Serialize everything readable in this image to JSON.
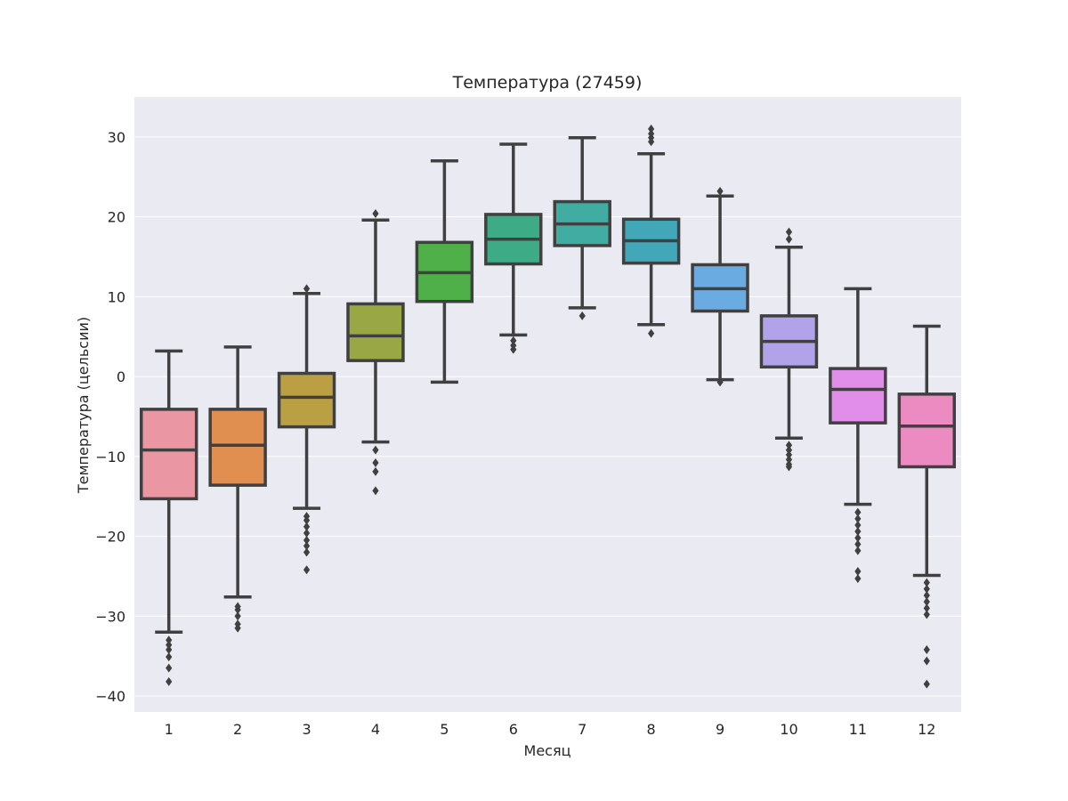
{
  "chart_data": {
    "type": "box",
    "title": "Температура (27459)",
    "xlabel": "Месяц",
    "ylabel": "Температура (цельсии)",
    "ylim": [
      -42,
      35
    ],
    "yticks": [
      30,
      20,
      10,
      0,
      -10,
      -20,
      -30,
      -40
    ],
    "ytick_labels": [
      "30",
      "20",
      "10",
      "0",
      "−10",
      "−20",
      "−30",
      "−40"
    ],
    "categories": [
      "1",
      "2",
      "3",
      "4",
      "5",
      "6",
      "7",
      "8",
      "9",
      "10",
      "11",
      "12"
    ],
    "colors": [
      "#ea96a3",
      "#e18e51",
      "#bba043",
      "#9aa745",
      "#4fb049",
      "#3dab86",
      "#41aca2",
      "#42a8b9",
      "#6aace2",
      "#b2a2ea",
      "#e18eea",
      "#eb8bc1"
    ],
    "line_color": "#404040",
    "background": "#eaeaf2",
    "boxes": [
      {
        "q1": -15.3,
        "median": -9.2,
        "q3": -4.1,
        "whisker_low": -32.0,
        "whisker_high": 3.2,
        "outliers": [
          -33.0,
          -33.6,
          -34.2,
          -35.1,
          -36.5,
          -38.2
        ]
      },
      {
        "q1": -13.6,
        "median": -8.6,
        "q3": -4.1,
        "whisker_low": -27.6,
        "whisker_high": 3.7,
        "outliers": [
          -28.8,
          -29.2,
          -30.0,
          -31.0,
          -31.5
        ]
      },
      {
        "q1": -6.3,
        "median": -2.6,
        "q3": 0.4,
        "whisker_low": -16.5,
        "whisker_high": 10.4,
        "outliers": [
          11.0,
          -17.5,
          -18.0,
          -18.8,
          -19.6,
          -20.5,
          -21.2,
          -22.0,
          -24.2
        ]
      },
      {
        "q1": 2.0,
        "median": 5.1,
        "q3": 9.1,
        "whisker_low": -8.2,
        "whisker_high": 19.6,
        "outliers": [
          20.4,
          -9.2,
          -10.8,
          -11.9,
          -14.3
        ]
      },
      {
        "q1": 9.4,
        "median": 13.0,
        "q3": 16.8,
        "whisker_low": -0.7,
        "whisker_high": 27.0,
        "outliers": []
      },
      {
        "q1": 14.1,
        "median": 17.2,
        "q3": 20.3,
        "whisker_low": 5.2,
        "whisker_high": 29.1,
        "outliers": [
          4.5,
          3.9,
          3.4
        ]
      },
      {
        "q1": 16.4,
        "median": 19.1,
        "q3": 21.9,
        "whisker_low": 8.6,
        "whisker_high": 29.9,
        "outliers": [
          7.6
        ]
      },
      {
        "q1": 14.2,
        "median": 17.0,
        "q3": 19.7,
        "whisker_low": 6.5,
        "whisker_high": 27.9,
        "outliers": [
          5.4,
          29.4,
          29.9,
          30.4,
          31.0
        ]
      },
      {
        "q1": 8.2,
        "median": 11.0,
        "q3": 14.0,
        "whisker_low": -0.4,
        "whisker_high": 22.6,
        "outliers": [
          23.2,
          -0.7
        ]
      },
      {
        "q1": 1.2,
        "median": 4.4,
        "q3": 7.6,
        "whisker_low": -7.7,
        "whisker_high": 16.2,
        "outliers": [
          17.2,
          18.1,
          -8.6,
          -9.2,
          -9.8,
          -10.4,
          -11.0,
          -11.3
        ]
      },
      {
        "q1": -5.8,
        "median": -1.6,
        "q3": 1.0,
        "whisker_low": -16.0,
        "whisker_high": 11.0,
        "outliers": [
          -17.0,
          -17.8,
          -18.6,
          -19.4,
          -20.2,
          -21.0,
          -21.8,
          -24.4,
          -25.3
        ]
      },
      {
        "q1": -11.3,
        "median": -6.2,
        "q3": -2.2,
        "whisker_low": -24.9,
        "whisker_high": 6.3,
        "outliers": [
          -25.8,
          -26.6,
          -27.4,
          -28.2,
          -29.0,
          -29.8,
          -34.2,
          -35.6,
          -38.5
        ]
      }
    ]
  }
}
